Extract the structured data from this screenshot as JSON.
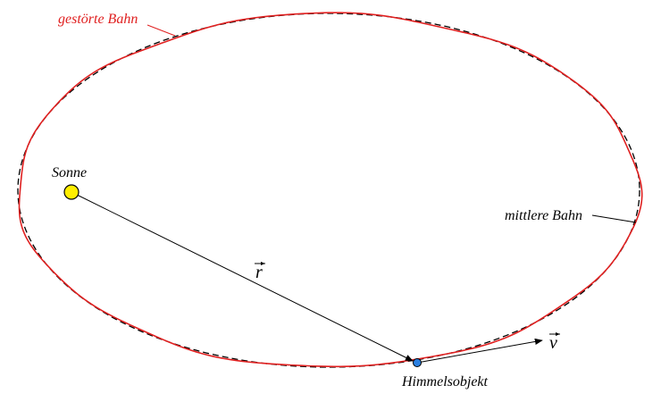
{
  "labels": {
    "perturbed_orbit": "gestörte Bahn",
    "mean_orbit": "mittlere Bahn",
    "sun": "Sonne",
    "object": "Himmelsobjekt",
    "radius_vector": "r",
    "velocity_vector": "v"
  },
  "colors": {
    "perturbed_orbit": "#e02020",
    "mean_orbit": "#000000",
    "sun": "#ffee00",
    "object": "#2a7fe0",
    "text": "#000000"
  }
}
